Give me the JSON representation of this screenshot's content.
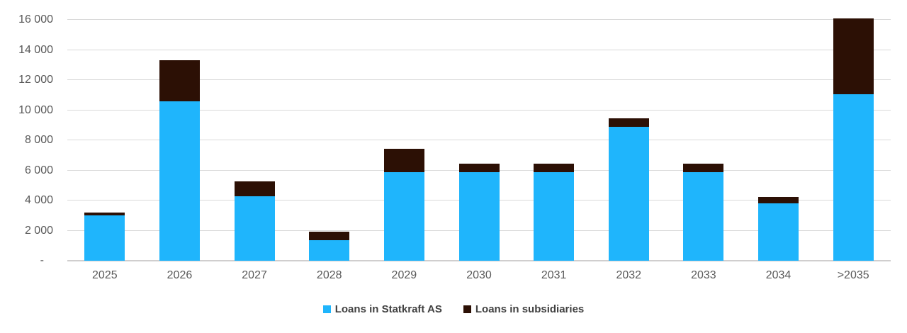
{
  "chart_data": {
    "type": "bar",
    "stacked": true,
    "title": "",
    "xlabel": "",
    "ylabel": "",
    "categories": [
      "2025",
      "2026",
      "2027",
      "2028",
      "2029",
      "2030",
      "2031",
      "2032",
      "2033",
      "2034",
      ">2035"
    ],
    "series": [
      {
        "name": "Loans in Statkraft AS",
        "color": "#1fb5fc",
        "values": [
          3000,
          10600,
          4300,
          1350,
          5900,
          5900,
          5900,
          8900,
          5900,
          3800,
          11050
        ]
      },
      {
        "name": "Loans in subsidiaries",
        "color": "#2c1005",
        "values": [
          200,
          2700,
          950,
          600,
          1550,
          550,
          550,
          550,
          550,
          450,
          5050
        ]
      }
    ],
    "ylim": [
      0,
      16000
    ],
    "ytick_step": 2000,
    "ytick_labels": [
      "-",
      "2 000",
      "4 000",
      "6 000",
      "8 000",
      "10 000",
      "12 000",
      "14 000",
      "16 000"
    ],
    "grid": true,
    "legend_position": "bottom"
  },
  "legend": {
    "items": [
      {
        "label": "Loans in Statkraft AS",
        "color": "#1fb5fc"
      },
      {
        "label": "Loans in subsidiaries",
        "color": "#2c1005"
      }
    ]
  },
  "colors": {
    "background": "#ffffff",
    "gridline": "#d9d9d9",
    "axis_line": "#d0cece",
    "tick_text": "#595959",
    "legend_text": "#404040"
  }
}
